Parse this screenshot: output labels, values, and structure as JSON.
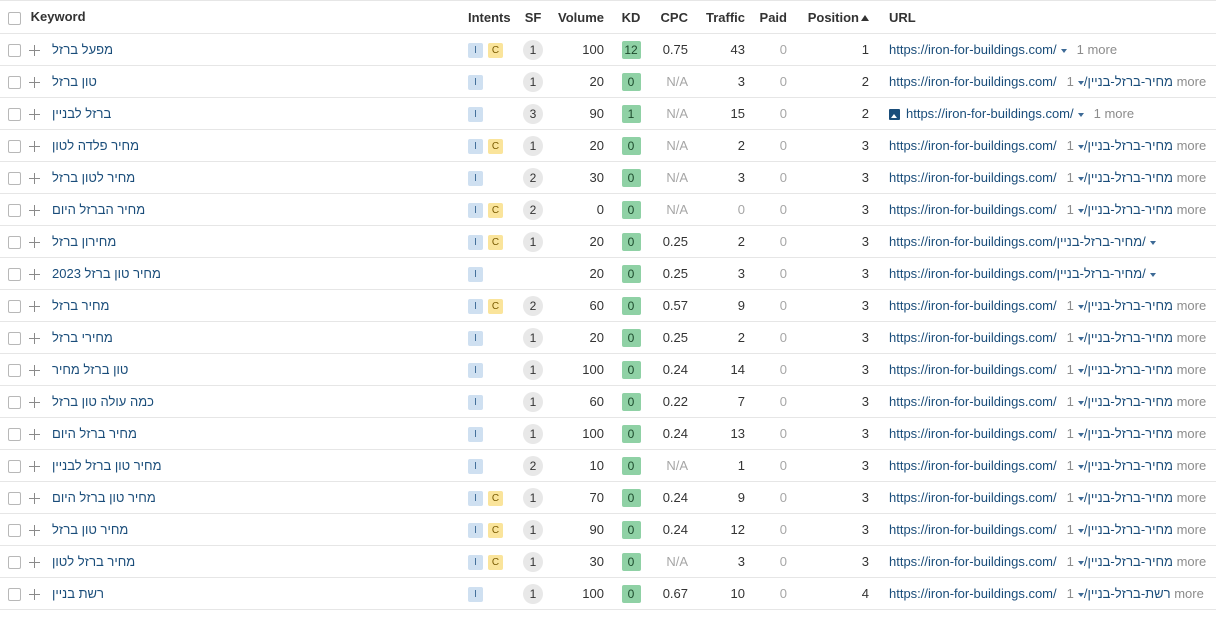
{
  "columns": {
    "keyword": "Keyword",
    "intents": "Intents",
    "sf": "SF",
    "volume": "Volume",
    "kd": "KD",
    "cpc": "CPC",
    "traffic": "Traffic",
    "paid": "Paid",
    "position": "Position",
    "url": "URL"
  },
  "rows": [
    {
      "keyword": "מפעל ברזל",
      "intents": [
        "I",
        "C"
      ],
      "sf": "1",
      "volume": "100",
      "kd": "12",
      "cpc": "0.75",
      "traffic": "43",
      "paid": "0",
      "position": "1",
      "url": "https://iron-for-buildings.com/",
      "more": "1 more",
      "img": false
    },
    {
      "keyword": "טון ברזל",
      "intents": [
        "I"
      ],
      "sf": "1",
      "volume": "20",
      "kd": "0",
      "cpc": "N/A",
      "traffic": "3",
      "paid": "0",
      "position": "2",
      "url": "https://iron-for-buildings.com/מחיר-ברזל-בניין/",
      "more": "1 more",
      "img": false
    },
    {
      "keyword": "ברזל לבניין",
      "intents": [
        "I"
      ],
      "sf": "3",
      "volume": "90",
      "kd": "1",
      "cpc": "N/A",
      "traffic": "15",
      "paid": "0",
      "position": "2",
      "url": "https://iron-for-buildings.com/",
      "more": "1 more",
      "img": true
    },
    {
      "keyword": "מחיר פלדה לטון",
      "intents": [
        "I",
        "C"
      ],
      "sf": "1",
      "volume": "20",
      "kd": "0",
      "cpc": "N/A",
      "traffic": "2",
      "paid": "0",
      "position": "3",
      "url": "https://iron-for-buildings.com/מחיר-ברזל-בניין/",
      "more": "1 more",
      "img": false
    },
    {
      "keyword": "מחיר לטון ברזל",
      "intents": [
        "I"
      ],
      "sf": "2",
      "volume": "30",
      "kd": "0",
      "cpc": "N/A",
      "traffic": "3",
      "paid": "0",
      "position": "3",
      "url": "https://iron-for-buildings.com/מחיר-ברזל-בניין/",
      "more": "1 more",
      "img": false
    },
    {
      "keyword": "מחיר הברזל היום",
      "intents": [
        "I",
        "C"
      ],
      "sf": "2",
      "volume": "0",
      "kd": "0",
      "cpc": "N/A",
      "traffic": "0",
      "paid": "0",
      "position": "3",
      "url": "https://iron-for-buildings.com/מחיר-ברזל-בניין/",
      "more": "1 more",
      "img": false
    },
    {
      "keyword": "מחירון ברזל",
      "intents": [
        "I",
        "C"
      ],
      "sf": "1",
      "volume": "20",
      "kd": "0",
      "cpc": "0.25",
      "traffic": "2",
      "paid": "0",
      "position": "3",
      "url": "https://iron-for-buildings.com/מחיר-ברזל-בניין/",
      "more": "",
      "img": false
    },
    {
      "keyword": "מחיר טון ברזל 2023",
      "intents": [
        "I"
      ],
      "sf": "",
      "volume": "20",
      "kd": "0",
      "cpc": "0.25",
      "traffic": "3",
      "paid": "0",
      "position": "3",
      "url": "https://iron-for-buildings.com/מחיר-ברזל-בניין/",
      "more": "",
      "img": false
    },
    {
      "keyword": "מחיר ברזל",
      "intents": [
        "I",
        "C"
      ],
      "sf": "2",
      "volume": "60",
      "kd": "0",
      "cpc": "0.57",
      "traffic": "9",
      "paid": "0",
      "position": "3",
      "url": "https://iron-for-buildings.com/מחיר-ברזל-בניין/",
      "more": "1 more",
      "img": false
    },
    {
      "keyword": "מחירי ברזל",
      "intents": [
        "I"
      ],
      "sf": "1",
      "volume": "20",
      "kd": "0",
      "cpc": "0.25",
      "traffic": "2",
      "paid": "0",
      "position": "3",
      "url": "https://iron-for-buildings.com/מחיר-ברזל-בניין/",
      "more": "1 more",
      "img": false
    },
    {
      "keyword": "טון ברזל מחיר",
      "intents": [
        "I"
      ],
      "sf": "1",
      "volume": "100",
      "kd": "0",
      "cpc": "0.24",
      "traffic": "14",
      "paid": "0",
      "position": "3",
      "url": "https://iron-for-buildings.com/מחיר-ברזל-בניין/",
      "more": "1 more",
      "img": false
    },
    {
      "keyword": "כמה עולה טון ברזל",
      "intents": [
        "I"
      ],
      "sf": "1",
      "volume": "60",
      "kd": "0",
      "cpc": "0.22",
      "traffic": "7",
      "paid": "0",
      "position": "3",
      "url": "https://iron-for-buildings.com/מחיר-ברזל-בניין/",
      "more": "1 more",
      "img": false
    },
    {
      "keyword": "מחיר ברזל היום",
      "intents": [
        "I"
      ],
      "sf": "1",
      "volume": "100",
      "kd": "0",
      "cpc": "0.24",
      "traffic": "13",
      "paid": "0",
      "position": "3",
      "url": "https://iron-for-buildings.com/מחיר-ברזל-בניין/",
      "more": "1 more",
      "img": false
    },
    {
      "keyword": "מחיר טון ברזל לבניין",
      "intents": [
        "I"
      ],
      "sf": "2",
      "volume": "10",
      "kd": "0",
      "cpc": "N/A",
      "traffic": "1",
      "paid": "0",
      "position": "3",
      "url": "https://iron-for-buildings.com/מחיר-ברזל-בניין/",
      "more": "1 more",
      "img": false
    },
    {
      "keyword": "מחיר טון ברזל היום",
      "intents": [
        "I",
        "C"
      ],
      "sf": "1",
      "volume": "70",
      "kd": "0",
      "cpc": "0.24",
      "traffic": "9",
      "paid": "0",
      "position": "3",
      "url": "https://iron-for-buildings.com/מחיר-ברזל-בניין/",
      "more": "1 more",
      "img": false
    },
    {
      "keyword": "מחיר טון ברזל",
      "intents": [
        "I",
        "C"
      ],
      "sf": "1",
      "volume": "90",
      "kd": "0",
      "cpc": "0.24",
      "traffic": "12",
      "paid": "0",
      "position": "3",
      "url": "https://iron-for-buildings.com/מחיר-ברזל-בניין/",
      "more": "1 more",
      "img": false
    },
    {
      "keyword": "מחיר ברזל לטון",
      "intents": [
        "I",
        "C"
      ],
      "sf": "1",
      "volume": "30",
      "kd": "0",
      "cpc": "N/A",
      "traffic": "3",
      "paid": "0",
      "position": "3",
      "url": "https://iron-for-buildings.com/מחיר-ברזל-בניין/",
      "more": "1 more",
      "img": false
    },
    {
      "keyword": "רשת בניין",
      "intents": [
        "I"
      ],
      "sf": "1",
      "volume": "100",
      "kd": "0",
      "cpc": "0.67",
      "traffic": "10",
      "paid": "0",
      "position": "4",
      "url": "https://iron-for-buildings.com/רשת-ברזל-בניין/",
      "more": "1 more",
      "img": false
    }
  ]
}
